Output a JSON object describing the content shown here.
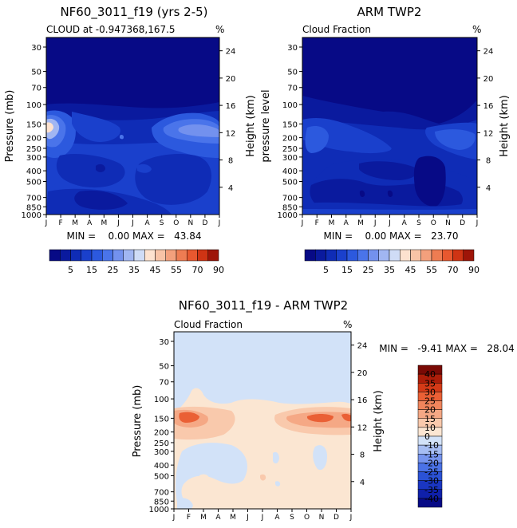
{
  "colors": {
    "scale_seq": [
      "#070a86",
      "#0a1a9e",
      "#0f2cb6",
      "#1a40cc",
      "#2c59de",
      "#4a74ea",
      "#7391ee",
      "#a1b6f2",
      "#cfdcf6",
      "#fde2cf",
      "#f8c3a6",
      "#f3a07c",
      "#ee7c52",
      "#e8582f",
      "#cf3414",
      "#9e1508"
    ],
    "scale_div": [
      "#070a86",
      "#0f20aa",
      "#1a36c2",
      "#2b52d6",
      "#4b72e6",
      "#7694ee",
      "#a6bdf3",
      "#d2e2f8",
      "#fbe6d2",
      "#f9c9ac",
      "#f5a885",
      "#f0855c",
      "#ea6035",
      "#d43a17",
      "#ad1d09",
      "#7a0a05"
    ]
  },
  "chart_data": [
    {
      "type": "heatmap",
      "title": "NF60_3011_f19 (yrs 2-5)",
      "subtitle_left": "CLOUD at -0.947368,167.5",
      "subtitle_right": "%",
      "ylabel_left": "Pressure (mb)",
      "ylabel_right": "Height (km)",
      "x_ticks": [
        "J",
        "F",
        "M",
        "A",
        "M",
        "J",
        "J",
        "A",
        "S",
        "O",
        "N",
        "D",
        "J"
      ],
      "pressure_ticks": [
        "30",
        "50",
        "70",
        "100",
        "150",
        "200",
        "250",
        "300",
        "400",
        "500",
        "700",
        "850",
        "1000"
      ],
      "pressure_values": [
        30,
        50,
        70,
        100,
        150,
        200,
        250,
        300,
        400,
        500,
        700,
        850,
        1000
      ],
      "height_ticks": [
        "24",
        "20",
        "16",
        "12",
        "8",
        "4"
      ],
      "height_values": [
        24,
        20,
        16,
        12,
        8,
        4
      ],
      "stats": "MIN =    0.00 MAX =   43.84",
      "min": 0.0,
      "max": 43.84,
      "colorbar_labels": [
        "5",
        "15",
        "25",
        "35",
        "45",
        "55",
        "70",
        "90"
      ]
    },
    {
      "type": "heatmap",
      "title": "ARM TWP2",
      "subtitle_left": "Cloud Fraction",
      "subtitle_right": "%",
      "ylabel_left": "pressure level",
      "ylabel_right": "Height (km)",
      "x_ticks": [
        "J",
        "F",
        "M",
        "A",
        "M",
        "J",
        "J",
        "A",
        "S",
        "O",
        "N",
        "D",
        "J"
      ],
      "pressure_ticks": [
        "30",
        "50",
        "70",
        "100",
        "150",
        "200",
        "250",
        "300",
        "400",
        "500",
        "700",
        "850",
        "1000"
      ],
      "pressure_values": [
        30,
        50,
        70,
        100,
        150,
        200,
        250,
        300,
        400,
        500,
        700,
        850,
        1000
      ],
      "height_ticks": [
        "24",
        "20",
        "16",
        "12",
        "8",
        "4"
      ],
      "height_values": [
        24,
        20,
        16,
        12,
        8,
        4
      ],
      "stats": "MIN =    0.00 MAX =   23.70",
      "min": 0.0,
      "max": 23.7,
      "colorbar_labels": [
        "5",
        "15",
        "25",
        "35",
        "45",
        "55",
        "70",
        "90"
      ]
    },
    {
      "type": "heatmap",
      "title": "NF60_3011_f19 - ARM TWP2",
      "subtitle_left": "Cloud Fraction",
      "subtitle_right": "%",
      "ylabel_left": "Pressure (mb)",
      "ylabel_right": "Height (km)",
      "x_ticks": [
        "J",
        "F",
        "M",
        "A",
        "M",
        "J",
        "J",
        "A",
        "S",
        "O",
        "N",
        "D",
        "J"
      ],
      "pressure_ticks": [
        "30",
        "50",
        "70",
        "100",
        "150",
        "200",
        "250",
        "300",
        "400",
        "500",
        "700",
        "850",
        "1000"
      ],
      "pressure_values": [
        30,
        50,
        70,
        100,
        150,
        200,
        250,
        300,
        400,
        500,
        700,
        850,
        1000
      ],
      "height_ticks": [
        "24",
        "20",
        "16",
        "12",
        "8",
        "4"
      ],
      "height_values": [
        24,
        20,
        16,
        12,
        8,
        4
      ],
      "stats": "MIN =   -9.41 MAX =   28.04",
      "min": -9.41,
      "max": 28.04,
      "colorbar_labels": [
        "40",
        "35",
        "30",
        "25",
        "20",
        "15",
        "10",
        "0",
        "-10",
        "-15",
        "-20",
        "-25",
        "-30",
        "-35",
        "-40"
      ]
    }
  ]
}
